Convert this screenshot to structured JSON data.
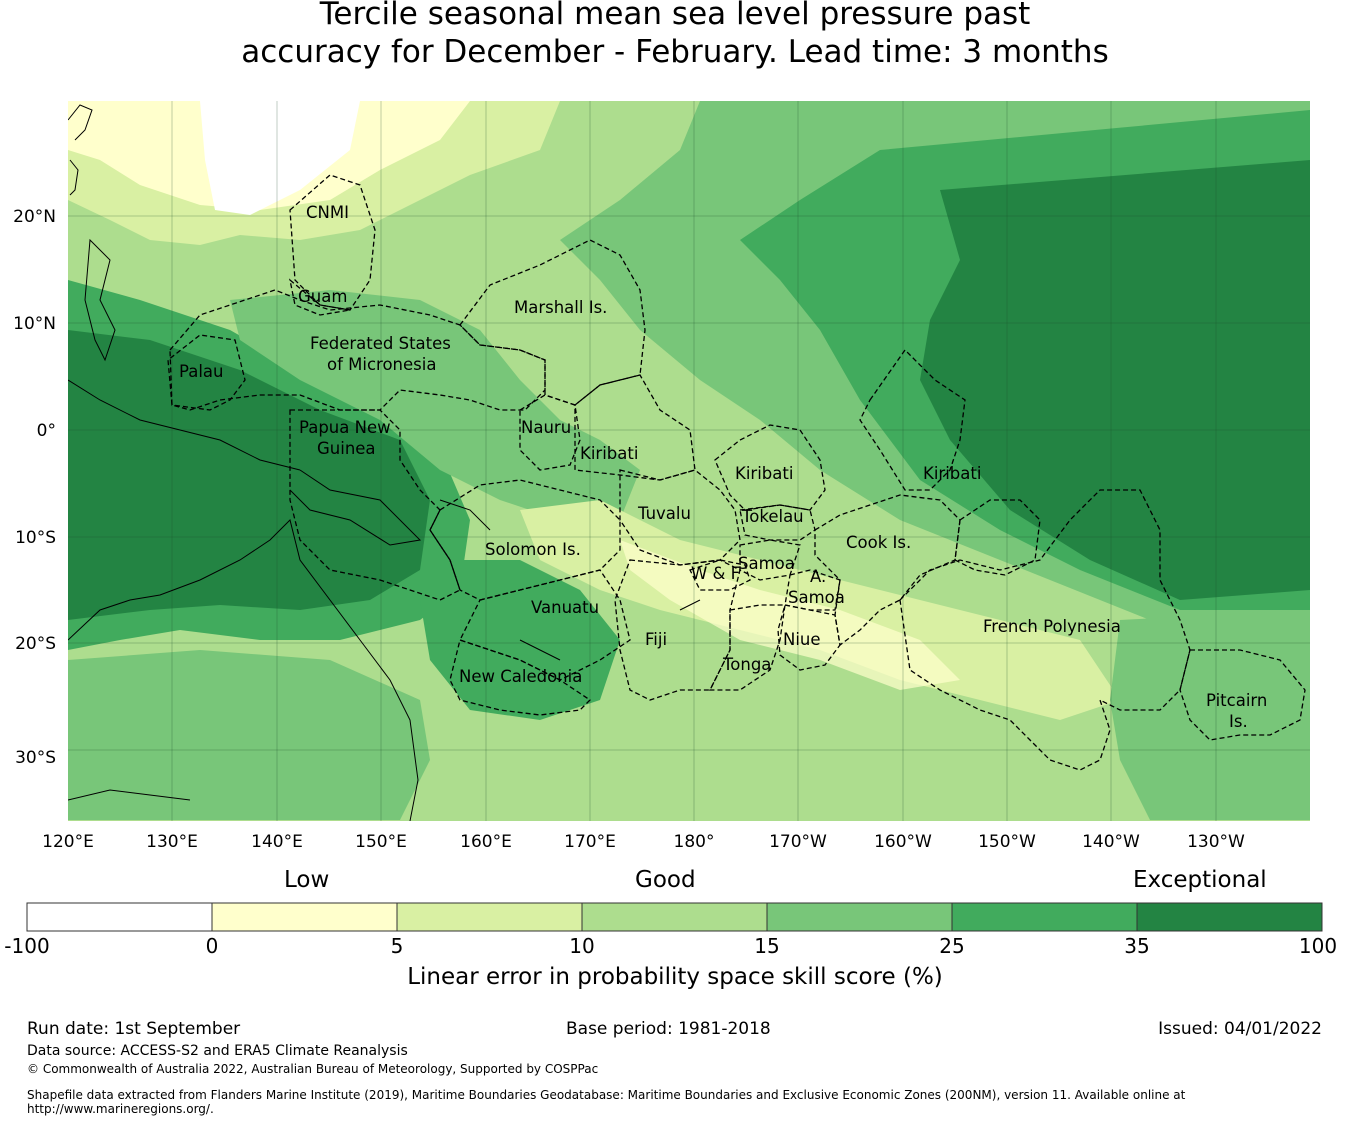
{
  "title": {
    "line1": "Tercile seasonal mean sea level pressure past",
    "line2": "accuracy for December - February. Lead time: 3 months"
  },
  "map": {
    "lon_ticks": [
      "120°E",
      "130°E",
      "140°E",
      "150°E",
      "160°E",
      "170°E",
      "180°",
      "170°W",
      "160°W",
      "150°W",
      "140°W",
      "130°W"
    ],
    "lat_ticks": [
      "20°N",
      "10°N",
      "0°",
      "10°S",
      "20°S",
      "30°S"
    ],
    "regions": [
      {
        "name": "CNMI"
      },
      {
        "name": "Guam"
      },
      {
        "name": "Marshall Is."
      },
      {
        "name": "Federated States"
      },
      {
        "name": "of Micronesia"
      },
      {
        "name": "Palau"
      },
      {
        "name": "Papua New"
      },
      {
        "name": "Guinea"
      },
      {
        "name": "Nauru"
      },
      {
        "name": "Kiribati"
      },
      {
        "name": "Kiribati"
      },
      {
        "name": "Kiribati"
      },
      {
        "name": "Tuvalu"
      },
      {
        "name": "Tokelau"
      },
      {
        "name": "Cook Is."
      },
      {
        "name": "Solomon Is."
      },
      {
        "name": "Samoa"
      },
      {
        "name": "W & F"
      },
      {
        "name": "A."
      },
      {
        "name": "Samoa"
      },
      {
        "name": "Vanuatu"
      },
      {
        "name": "Fiji"
      },
      {
        "name": "Niue"
      },
      {
        "name": "Tonga"
      },
      {
        "name": "French Polynesia"
      },
      {
        "name": "New Caledonia"
      },
      {
        "name": "Pitcairn"
      },
      {
        "name": "Is."
      }
    ],
    "colors": {
      "neg": "#ffffff",
      "c0_5": "#ffffcc",
      "c5_10": "#d9f0a3",
      "c10_15": "#addd8e",
      "c15_25": "#78c679",
      "c25_35": "#41ab5d",
      "c35_100": "#238443"
    }
  },
  "colorbar": {
    "categories": [
      "Low",
      "Good",
      "Exceptional"
    ],
    "ticks": [
      "-100",
      "0",
      "5",
      "10",
      "15",
      "25",
      "35",
      "100"
    ],
    "title": "Linear error in probability space skill score (%)"
  },
  "footer": {
    "run_date": "Run date: 1st September",
    "base_period": "Base period: 1981-2018",
    "issued": "Issued: 04/01/2022",
    "source": "Data source: ACCESS-S2 and ERA5 Climate Reanalysis",
    "copyright": "© Commonwealth of Australia 2022, Australian Bureau of Meteorology, Supported by COSPPac",
    "shapefile": "Shapefile data extracted from Flanders Marine Institute (2019), Maritime Boundaries Geodatabase: Maritime Boundaries and Exclusive Economic Zones (200NM), version 11. Available online at http://www.marineregions.org/."
  }
}
